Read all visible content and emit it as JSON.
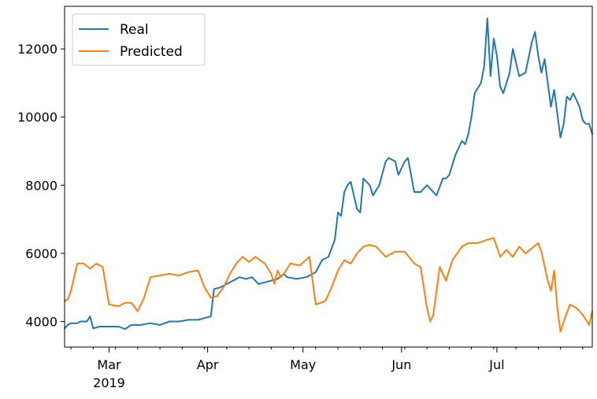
{
  "chart_data": {
    "type": "line",
    "x_axis": {
      "type": "date",
      "range": [
        "2019-02-15",
        "2019-07-31"
      ],
      "major_ticks": [
        {
          "date": "2019-03-01",
          "label": "Mar",
          "sublabel": "2019"
        },
        {
          "date": "2019-04-01",
          "label": "Apr",
          "sublabel": ""
        },
        {
          "date": "2019-05-01",
          "label": "May",
          "sublabel": ""
        },
        {
          "date": "2019-06-01",
          "label": "Jun",
          "sublabel": ""
        },
        {
          "date": "2019-07-01",
          "label": "Jul",
          "sublabel": ""
        }
      ]
    },
    "y_axis": {
      "range": [
        3250,
        13250
      ],
      "ticks": [
        4000,
        6000,
        8000,
        10000,
        12000
      ],
      "tick_labels": [
        "4000",
        "6000",
        "8000",
        "10000",
        "12000"
      ]
    },
    "legend": {
      "placement": "top-left"
    },
    "grid": false,
    "series": [
      {
        "name": "Real",
        "color": "#1f77b4",
        "points": [
          [
            "2019-02-15",
            3800
          ],
          [
            "2019-02-16",
            3900
          ],
          [
            "2019-02-17",
            3950
          ],
          [
            "2019-02-19",
            3950
          ],
          [
            "2019-02-20",
            4000
          ],
          [
            "2019-02-22",
            4000
          ],
          [
            "2019-02-23",
            4150
          ],
          [
            "2019-02-24",
            3800
          ],
          [
            "2019-02-26",
            3850
          ],
          [
            "2019-03-01",
            3850
          ],
          [
            "2019-03-04",
            3850
          ],
          [
            "2019-03-06",
            3780
          ],
          [
            "2019-03-08",
            3900
          ],
          [
            "2019-03-11",
            3900
          ],
          [
            "2019-03-14",
            3950
          ],
          [
            "2019-03-17",
            3900
          ],
          [
            "2019-03-20",
            4000
          ],
          [
            "2019-03-23",
            4000
          ],
          [
            "2019-03-26",
            4050
          ],
          [
            "2019-03-29",
            4050
          ],
          [
            "2019-03-31",
            4100
          ],
          [
            "2019-04-02",
            4150
          ],
          [
            "2019-04-03",
            4950
          ],
          [
            "2019-04-05",
            5000
          ],
          [
            "2019-04-07",
            5100
          ],
          [
            "2019-04-09",
            5200
          ],
          [
            "2019-04-11",
            5300
          ],
          [
            "2019-04-13",
            5250
          ],
          [
            "2019-04-15",
            5300
          ],
          [
            "2019-04-17",
            5100
          ],
          [
            "2019-04-19",
            5150
          ],
          [
            "2019-04-21",
            5200
          ],
          [
            "2019-04-23",
            5250
          ],
          [
            "2019-04-25",
            5400
          ],
          [
            "2019-04-26",
            5300
          ],
          [
            "2019-04-29",
            5250
          ],
          [
            "2019-05-02",
            5300
          ],
          [
            "2019-05-05",
            5450
          ],
          [
            "2019-05-07",
            5800
          ],
          [
            "2019-05-09",
            5900
          ],
          [
            "2019-05-11",
            6400
          ],
          [
            "2019-05-12",
            7200
          ],
          [
            "2019-05-13",
            7100
          ],
          [
            "2019-05-14",
            7800
          ],
          [
            "2019-05-15",
            8000
          ],
          [
            "2019-05-16",
            8100
          ],
          [
            "2019-05-17",
            7700
          ],
          [
            "2019-05-18",
            7300
          ],
          [
            "2019-05-19",
            7200
          ],
          [
            "2019-05-20",
            8200
          ],
          [
            "2019-05-22",
            8000
          ],
          [
            "2019-05-23",
            7700
          ],
          [
            "2019-05-25",
            8000
          ],
          [
            "2019-05-27",
            8700
          ],
          [
            "2019-05-28",
            8800
          ],
          [
            "2019-05-30",
            8700
          ],
          [
            "2019-05-31",
            8300
          ],
          [
            "2019-06-02",
            8700
          ],
          [
            "2019-06-03",
            8800
          ],
          [
            "2019-06-05",
            7800
          ],
          [
            "2019-06-07",
            7800
          ],
          [
            "2019-06-09",
            8000
          ],
          [
            "2019-06-11",
            7800
          ],
          [
            "2019-06-12",
            7700
          ],
          [
            "2019-06-14",
            8200
          ],
          [
            "2019-06-15",
            8200
          ],
          [
            "2019-06-16",
            8300
          ],
          [
            "2019-06-17",
            8600
          ],
          [
            "2019-06-18",
            8900
          ],
          [
            "2019-06-20",
            9300
          ],
          [
            "2019-06-21",
            9200
          ],
          [
            "2019-06-22",
            9500
          ],
          [
            "2019-06-23",
            10000
          ],
          [
            "2019-06-24",
            10700
          ],
          [
            "2019-06-26",
            11000
          ],
          [
            "2019-06-27",
            11500
          ],
          [
            "2019-06-28",
            12900
          ],
          [
            "2019-06-29",
            11200
          ],
          [
            "2019-06-30",
            12300
          ],
          [
            "2019-07-01",
            11800
          ],
          [
            "2019-07-02",
            10900
          ],
          [
            "2019-07-03",
            10700
          ],
          [
            "2019-07-05",
            11300
          ],
          [
            "2019-07-06",
            12000
          ],
          [
            "2019-07-08",
            11200
          ],
          [
            "2019-07-10",
            11300
          ],
          [
            "2019-07-12",
            12200
          ],
          [
            "2019-07-13",
            12500
          ],
          [
            "2019-07-14",
            11800
          ],
          [
            "2019-07-15",
            11300
          ],
          [
            "2019-07-16",
            11700
          ],
          [
            "2019-07-18",
            10300
          ],
          [
            "2019-07-19",
            10800
          ],
          [
            "2019-07-21",
            9400
          ],
          [
            "2019-07-22",
            9800
          ],
          [
            "2019-07-23",
            10600
          ],
          [
            "2019-07-24",
            10500
          ],
          [
            "2019-07-25",
            10700
          ],
          [
            "2019-07-27",
            10300
          ],
          [
            "2019-07-28",
            9900
          ],
          [
            "2019-07-29",
            9800
          ],
          [
            "2019-07-30",
            9800
          ],
          [
            "2019-07-31",
            9500
          ]
        ]
      },
      {
        "name": "Predicted",
        "color": "#ff7f0e",
        "points": [
          [
            "2019-02-15",
            4600
          ],
          [
            "2019-02-16",
            4650
          ],
          [
            "2019-02-17",
            4900
          ],
          [
            "2019-02-18",
            5300
          ],
          [
            "2019-02-19",
            5700
          ],
          [
            "2019-02-21",
            5700
          ],
          [
            "2019-02-23",
            5550
          ],
          [
            "2019-02-25",
            5700
          ],
          [
            "2019-02-27",
            5600
          ],
          [
            "2019-03-01",
            4500
          ],
          [
            "2019-03-04",
            4450
          ],
          [
            "2019-03-06",
            4550
          ],
          [
            "2019-03-08",
            4550
          ],
          [
            "2019-03-10",
            4300
          ],
          [
            "2019-03-12",
            4700
          ],
          [
            "2019-03-14",
            5300
          ],
          [
            "2019-03-17",
            5350
          ],
          [
            "2019-03-20",
            5400
          ],
          [
            "2019-03-23",
            5350
          ],
          [
            "2019-03-26",
            5450
          ],
          [
            "2019-03-29",
            5500
          ],
          [
            "2019-03-31",
            5000
          ],
          [
            "2019-04-02",
            4700
          ],
          [
            "2019-04-04",
            4750
          ],
          [
            "2019-04-06",
            5000
          ],
          [
            "2019-04-08",
            5400
          ],
          [
            "2019-04-10",
            5700
          ],
          [
            "2019-04-12",
            5900
          ],
          [
            "2019-04-14",
            5750
          ],
          [
            "2019-04-16",
            5900
          ],
          [
            "2019-04-19",
            5700
          ],
          [
            "2019-04-21",
            5400
          ],
          [
            "2019-04-22",
            5100
          ],
          [
            "2019-04-23",
            5500
          ],
          [
            "2019-04-24",
            5300
          ],
          [
            "2019-04-25",
            5400
          ],
          [
            "2019-04-27",
            5700
          ],
          [
            "2019-04-30",
            5650
          ],
          [
            "2019-05-03",
            5900
          ],
          [
            "2019-05-05",
            4500
          ],
          [
            "2019-05-08",
            4600
          ],
          [
            "2019-05-10",
            5000
          ],
          [
            "2019-05-12",
            5500
          ],
          [
            "2019-05-14",
            5800
          ],
          [
            "2019-05-16",
            5700
          ],
          [
            "2019-05-18",
            6000
          ],
          [
            "2019-05-20",
            6200
          ],
          [
            "2019-05-22",
            6250
          ],
          [
            "2019-05-24",
            6200
          ],
          [
            "2019-05-27",
            5900
          ],
          [
            "2019-05-30",
            6050
          ],
          [
            "2019-06-02",
            6050
          ],
          [
            "2019-06-05",
            5700
          ],
          [
            "2019-06-07",
            5600
          ],
          [
            "2019-06-09",
            4400
          ],
          [
            "2019-06-10",
            4000
          ],
          [
            "2019-06-11",
            4200
          ],
          [
            "2019-06-13",
            5600
          ],
          [
            "2019-06-15",
            5200
          ],
          [
            "2019-06-17",
            5800
          ],
          [
            "2019-06-20",
            6200
          ],
          [
            "2019-06-22",
            6300
          ],
          [
            "2019-06-25",
            6300
          ],
          [
            "2019-06-28",
            6400
          ],
          [
            "2019-06-30",
            6450
          ],
          [
            "2019-07-02",
            5900
          ],
          [
            "2019-07-04",
            6100
          ],
          [
            "2019-07-06",
            5900
          ],
          [
            "2019-07-08",
            6200
          ],
          [
            "2019-07-10",
            6000
          ],
          [
            "2019-07-12",
            6150
          ],
          [
            "2019-07-14",
            6300
          ],
          [
            "2019-07-15",
            6050
          ],
          [
            "2019-07-17",
            5200
          ],
          [
            "2019-07-18",
            4900
          ],
          [
            "2019-07-19",
            5500
          ],
          [
            "2019-07-20",
            4400
          ],
          [
            "2019-07-21",
            3700
          ],
          [
            "2019-07-22",
            4000
          ],
          [
            "2019-07-24",
            4500
          ],
          [
            "2019-07-26",
            4400
          ],
          [
            "2019-07-28",
            4200
          ],
          [
            "2019-07-30",
            3900
          ],
          [
            "2019-07-31",
            4300
          ]
        ]
      }
    ]
  }
}
